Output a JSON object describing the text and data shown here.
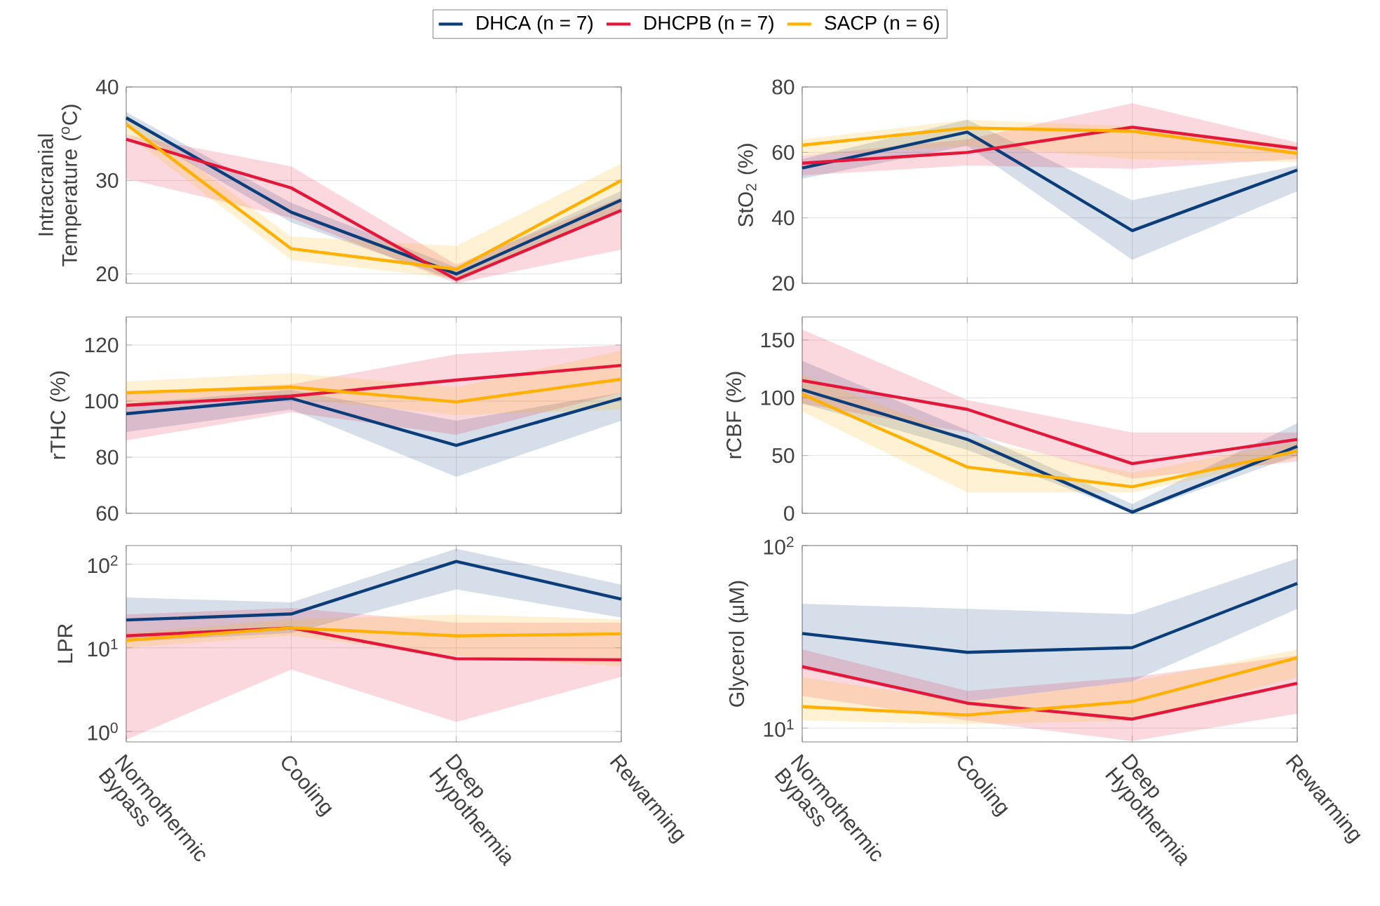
{
  "chart_data": [
    {
      "type": "line",
      "ylabel": "Intracranial Temperature ($^{o}$C)",
      "categories": [
        null,
        null,
        null,
        null
      ],
      "tick_labels": "y",
      "ylim": [
        19,
        40
      ],
      "yticks": [
        20,
        30,
        40
      ],
      "grid": true,
      "legend": "top",
      "series": [
        {
          "name": "DHCA (n = 7)",
          "color": "#0b3d7a",
          "values": [
            36.7,
            26.6,
            20.0,
            27.9
          ],
          "lower": [
            35.8,
            25.5,
            19.3,
            26.8
          ],
          "upper": [
            37.3,
            27.6,
            20.7,
            28.9
          ]
        },
        {
          "name": "DHCPB (n = 7)",
          "color": "#e4163a",
          "values": [
            34.4,
            29.2,
            19.4,
            26.8
          ],
          "lower": [
            30.2,
            26.0,
            19.0,
            22.6
          ],
          "upper": [
            34.9,
            31.5,
            21.0,
            28.2
          ]
        },
        {
          "name": "SACP (n = 6)",
          "color": "#ffb000",
          "values": [
            36.0,
            22.7,
            20.5,
            30.0
          ],
          "lower": [
            35.0,
            21.5,
            19.5,
            27.0
          ],
          "upper": [
            37.0,
            24.0,
            23.0,
            31.8
          ]
        }
      ]
    },
    {
      "type": "line",
      "ylabel": "StO$_{2}$ (%)",
      "categories": [
        null,
        null,
        null,
        null
      ],
      "tick_labels": "y",
      "ylim": [
        20,
        80
      ],
      "yticks": [
        20,
        40,
        60,
        80
      ],
      "grid": true,
      "series": [
        {
          "color": "#0b3d7a",
          "values": [
            55.2,
            66.2,
            36.1,
            54.6
          ],
          "lower": [
            52,
            62,
            27.2,
            48.1
          ],
          "upper": [
            58,
            70,
            45.4,
            56
          ]
        },
        {
          "color": "#e4163a",
          "values": [
            56.7,
            60.0,
            67.7,
            61.2
          ],
          "lower": [
            53,
            56,
            55,
            58
          ],
          "upper": [
            59,
            64,
            75,
            63
          ]
        },
        {
          "color": "#ffb000",
          "values": [
            62.2,
            67.5,
            66.5,
            59.7
          ],
          "lower": [
            59,
            62,
            58,
            57
          ],
          "upper": [
            64,
            70,
            68,
            62
          ]
        }
      ]
    },
    {
      "type": "line",
      "ylabel": "rTHC (%)",
      "categories": [
        null,
        null,
        null,
        null
      ],
      "tick_labels": "y",
      "ylim": [
        60,
        130
      ],
      "yticks": [
        60,
        80,
        100,
        120
      ],
      "grid": true,
      "series": [
        {
          "color": "#0b3d7a",
          "values": [
            95.5,
            101,
            84.2,
            101
          ],
          "lower": [
            89,
            97,
            73,
            93
          ],
          "upper": [
            99,
            104,
            93,
            103
          ]
        },
        {
          "color": "#e4163a",
          "values": [
            98.5,
            101.8,
            107.5,
            112.7
          ],
          "lower": [
            86,
            96,
            88,
            103
          ],
          "upper": [
            103,
            106,
            116.7,
            120
          ]
        },
        {
          "color": "#ffb000",
          "values": [
            103,
            105,
            99.7,
            107.8
          ],
          "lower": [
            99,
            101,
            95,
            97
          ],
          "upper": [
            107,
            110,
            105,
            118
          ]
        }
      ]
    },
    {
      "type": "line",
      "ylabel": "rCBF (%)",
      "categories": [
        null,
        null,
        null,
        null
      ],
      "tick_labels": "y",
      "ylim": [
        0,
        170
      ],
      "yticks": [
        0,
        50,
        100,
        150
      ],
      "grid": true,
      "series": [
        {
          "color": "#0b3d7a",
          "values": [
            107,
            64,
            1,
            58
          ],
          "lower": [
            95,
            55,
            0,
            50
          ],
          "upper": [
            132,
            72,
            8,
            78
          ]
        },
        {
          "color": "#e4163a",
          "values": [
            115,
            90,
            43,
            64
          ],
          "lower": [
            95,
            70,
            30,
            45
          ],
          "upper": [
            159,
            98,
            70,
            70
          ]
        },
        {
          "color": "#ffb000",
          "values": [
            103,
            40,
            23,
            54
          ],
          "lower": [
            88,
            18,
            18,
            48
          ],
          "upper": [
            120,
            65,
            35,
            62
          ]
        }
      ]
    },
    {
      "type": "line",
      "ylabel": "LPR",
      "categories": [
        "Normothermic Bypass",
        "Cooling",
        "Deep Hypothermia",
        "Rewarming"
      ],
      "log": "y",
      "ylim": [
        0.75,
        167
      ],
      "yticks": [
        {
          "value": 1,
          "label": "10$^{0}$"
        },
        {
          "value": 10,
          "label": "10$^{1}$"
        },
        {
          "value": 100,
          "label": "10$^{2}$"
        }
      ],
      "grid": true,
      "series": [
        {
          "color": "#0b3d7a",
          "values": [
            21.5,
            25.4,
            108,
            38.3
          ],
          "lower": [
            11.8,
            15,
            50,
            23
          ],
          "upper": [
            40,
            35,
            153,
            57
          ]
        },
        {
          "color": "#e4163a",
          "values": [
            13.9,
            17.3,
            7.4,
            7.2
          ],
          "lower": [
            0.8,
            5.5,
            1.3,
            4.5
          ],
          "upper": [
            25,
            30,
            20,
            20
          ]
        },
        {
          "color": "#ffb000",
          "values": [
            12.3,
            17.3,
            13.9,
            14.7
          ],
          "lower": [
            10,
            14,
            8,
            6
          ],
          "upper": [
            15,
            22,
            25,
            22
          ]
        }
      ]
    },
    {
      "type": "line",
      "ylabel": "Glycerol (μM)",
      "categories": [
        "Normothermic Bypass",
        "Cooling",
        "Deep Hypothermia",
        "Rewarming"
      ],
      "log": "y",
      "ylim": [
        8.4,
        100
      ],
      "yticks": [
        {
          "value": 10,
          "label": "10$^{1}$"
        },
        {
          "value": 100,
          "label": "10$^{2}$"
        }
      ],
      "grid": true,
      "series": [
        {
          "color": "#0b3d7a",
          "values": [
            33,
            26,
            27.6,
            62
          ],
          "lower": [
            21,
            14,
            18,
            45
          ],
          "upper": [
            48,
            45,
            42,
            85
          ]
        },
        {
          "color": "#e4163a",
          "values": [
            21.7,
            13.7,
            11.2,
            17.6
          ],
          "lower": [
            15,
            11,
            8.5,
            12
          ],
          "upper": [
            27,
            16,
            19,
            25
          ]
        },
        {
          "color": "#ffb000",
          "values": [
            13.1,
            11.8,
            14.0,
            24.3
          ],
          "lower": [
            11,
            10.5,
            11,
            19
          ],
          "upper": [
            19,
            14,
            18,
            27
          ]
        }
      ]
    }
  ]
}
